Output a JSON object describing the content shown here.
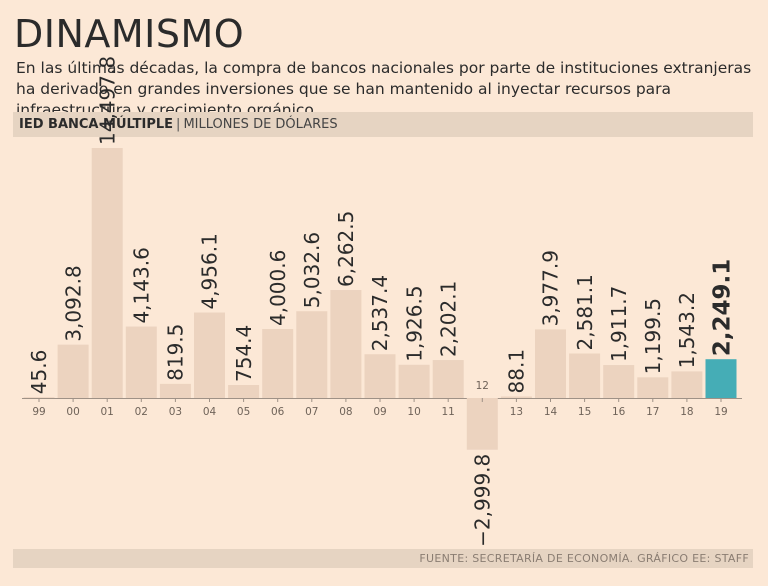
{
  "title": "DINAMISMO",
  "subtitle": "En las últimas décadas, la compra de bancos nacionales por parte de instituciones extranjeras ha derivado en grandes inversiones que se han mantenido al inyectar recursos para infraestructura y crecimiento orgánico.",
  "header": {
    "label_bold": "IED BANCA MÚLTIPLE",
    "separator": "|",
    "label_unit": "MILLONES DE DÓLARES"
  },
  "footer": {
    "source": "FUENTE: SECRETARÍA DE ECONOMÍA. GRÁFICO EE: STAFF"
  },
  "colors": {
    "bar": "#ecd3bf",
    "highlight_bar": "#45adb6",
    "text": "#2b2b2b",
    "axis": "#9e9186"
  },
  "chart_data": {
    "type": "bar",
    "title": "IED BANCA MÚLTIPLE",
    "ylabel": "MILLONES DE DÓLARES",
    "categories": [
      "99",
      "00",
      "01",
      "02",
      "03",
      "04",
      "05",
      "06",
      "07",
      "08",
      "09",
      "10",
      "11",
      "12",
      "13",
      "14",
      "15",
      "16",
      "17",
      "18",
      "19"
    ],
    "values": [
      45.6,
      3092.8,
      14497.8,
      4143.6,
      819.5,
      4956.1,
      754.4,
      4000.6,
      5032.6,
      6262.5,
      2537.4,
      1926.5,
      2202.1,
      -2999.8,
      88.1,
      3977.9,
      2581.1,
      1911.7,
      1199.5,
      1543.2,
      2249.1
    ],
    "labels": [
      "45.6",
      "3,092.8",
      "14,497.8",
      "4,143.6",
      "819.5",
      "4,956.1",
      "754.4",
      "4,000.6",
      "5,032.6",
      "6,262.5",
      "2,537.4",
      "1,926.5",
      "2,202.1",
      "−2,999.8",
      "88.1",
      "3,977.9",
      "2,581.1",
      "1,911.7",
      "1,199.5",
      "1,543.2",
      "2,249.1"
    ],
    "highlight": "19",
    "grid": false,
    "legend": "none"
  }
}
